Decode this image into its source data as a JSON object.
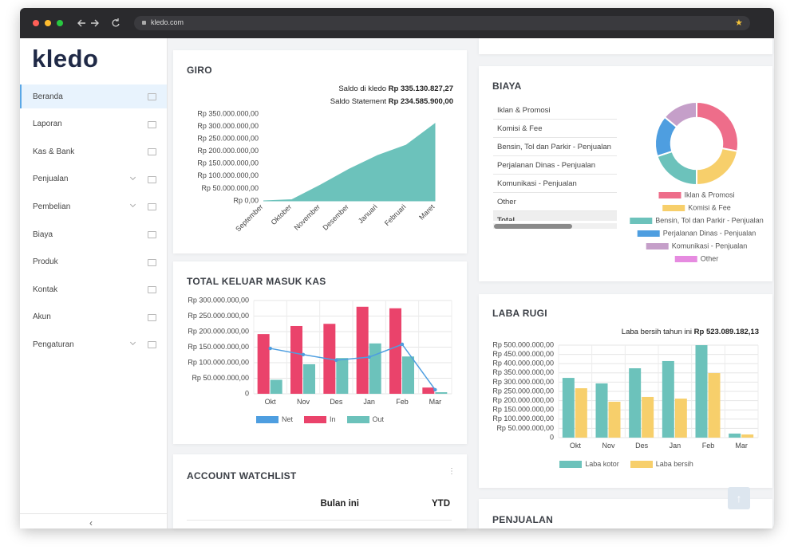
{
  "browser": {
    "url": "kledo.com"
  },
  "sidebar": {
    "logo": "kledo",
    "menu": [
      "Beranda",
      "Laporan",
      "Kas & Bank",
      "Penjualan",
      "Pembelian",
      "Biaya",
      "Produk",
      "Kontak",
      "Akun",
      "Pengaturan"
    ]
  },
  "giro": {
    "title": "GIRO",
    "saldo": [
      {
        "label": "Saldo di kledo",
        "value": "Rp 335.130.827,27"
      },
      {
        "label": "Saldo Statement",
        "value": "Rp 234.585.900,00"
      }
    ],
    "chart": {
      "type": "area",
      "categories": [
        "September",
        "Oktober",
        "November",
        "Desember",
        "Januari",
        "Februari",
        "Maret"
      ],
      "values": [
        0,
        5000000,
        64000000,
        128000000,
        183000000,
        225000000,
        311000000
      ],
      "color": "#6cc2bb",
      "ylim": [
        0,
        350000000
      ],
      "yticks": [
        {
          "value": 0,
          "label": "Rp 0,00"
        },
        {
          "value": 50000000,
          "label": "Rp 50.000.000,00"
        },
        {
          "value": 100000000,
          "label": "Rp 100.000.000,00"
        },
        {
          "value": 150000000,
          "label": "Rp 150.000.000,00"
        },
        {
          "value": 200000000,
          "label": "Rp 200.000.000,00"
        },
        {
          "value": 250000000,
          "label": "Rp 250.000.000,00"
        },
        {
          "value": 300000000,
          "label": "Rp 300.000.000,00"
        },
        {
          "value": 350000000,
          "label": "Rp 350.000.000,00"
        }
      ],
      "grid": false
    }
  },
  "kas": {
    "title": "TOTAL KELUAR MASUK KAS",
    "chart": {
      "type": "bar",
      "categories": [
        "Okt",
        "Nov",
        "Des",
        "Jan",
        "Feb",
        "Mar"
      ],
      "series": [
        {
          "name": "Net",
          "type": "line",
          "color": "#4e9ee0",
          "values": [
            146000000,
            126000000,
            108000000,
            118000000,
            159000000,
            13000000
          ]
        },
        {
          "name": "In",
          "color": "#ea436b",
          "values": [
            192000000,
            218000000,
            225000000,
            280000000,
            275000000,
            20000000
          ]
        },
        {
          "name": "Out",
          "color": "#6cc2bb",
          "values": [
            45000000,
            95000000,
            115000000,
            162000000,
            120000000,
            5000000
          ]
        }
      ],
      "ylim": [
        0,
        300000000
      ],
      "yticks": [
        0,
        {
          "value": 50000000,
          "label": "Rp 50.000.000,00"
        },
        {
          "value": 100000000,
          "label": "Rp 100.000.000,00"
        },
        {
          "value": 150000000,
          "label": "Rp 150.000.000,00"
        },
        {
          "value": 200000000,
          "label": "Rp 200.000.000,00"
        },
        {
          "value": 250000000,
          "label": "Rp 250.000.000,00"
        },
        {
          "value": 300000000,
          "label": "Rp 300.000.000,00"
        }
      ],
      "grid": true
    }
  },
  "watchlist": {
    "title": "ACCOUNT WATCHLIST",
    "columns": [
      "Bulan ini",
      "YTD"
    ]
  },
  "biaya": {
    "title": "BIAYA",
    "rows": [
      "Iklan & Promosi",
      "Komisi & Fee",
      "Bensin, Tol dan Parkir - Penjualan",
      "Perjalanan Dinas - Penjualan",
      "Komunikasi - Penjualan",
      "Other",
      "Total"
    ],
    "chart": {
      "type": "pie",
      "donut": true,
      "categories": [
        "Iklan & Promosi",
        "Komisi & Fee",
        "Bensin, Tol dan Parkir - Penjualan",
        "Perjalanan Dinas - Penjualan",
        "Komunikasi - Penjualan",
        "Other"
      ],
      "values": [
        28,
        22,
        20,
        16,
        14,
        0
      ],
      "colors": [
        "#ee6d8a",
        "#f7cf6b",
        "#6cc2bb",
        "#4e9ee0",
        "#c59fc9",
        "#e68be0"
      ]
    }
  },
  "laba": {
    "title": "LABA RUGI",
    "summary_label": "Laba bersih tahun ini",
    "summary_value": "Rp 523.089.182,13",
    "chart": {
      "type": "bar",
      "categories": [
        "Okt",
        "Nov",
        "Des",
        "Jan",
        "Feb",
        "Mar"
      ],
      "series": [
        {
          "name": "Laba kotor",
          "color": "#6cc2bb",
          "values": [
            323000000,
            293000000,
            375000000,
            414000000,
            500000000,
            22000000
          ]
        },
        {
          "name": "Laba bersih",
          "color": "#f7cf6b",
          "values": [
            267000000,
            194000000,
            220000000,
            211000000,
            349000000,
            17000000
          ]
        }
      ],
      "ylim": [
        0,
        500000000
      ],
      "yticks": [
        0,
        {
          "value": 50000000,
          "label": "Rp 50.000.000,00"
        },
        {
          "value": 100000000,
          "label": "Rp 100.000.000,00"
        },
        {
          "value": 150000000,
          "label": "Rp 150.000.000,00"
        },
        {
          "value": 200000000,
          "label": "Rp 200.000.000,00"
        },
        {
          "value": 250000000,
          "label": "Rp 250.000.000,00"
        },
        {
          "value": 300000000,
          "label": "Rp 300.000.000,00"
        },
        {
          "value": 350000000,
          "label": "Rp 350.000.000,00"
        },
        {
          "value": 400000000,
          "label": "Rp 400.000.000,00"
        },
        {
          "value": 450000000,
          "label": "Rp 450.000.000,00"
        },
        {
          "value": 500000000,
          "label": "Rp 500.000.000,00"
        }
      ],
      "grid": true
    }
  },
  "penjualan": {
    "title": "PENJUALAN"
  }
}
